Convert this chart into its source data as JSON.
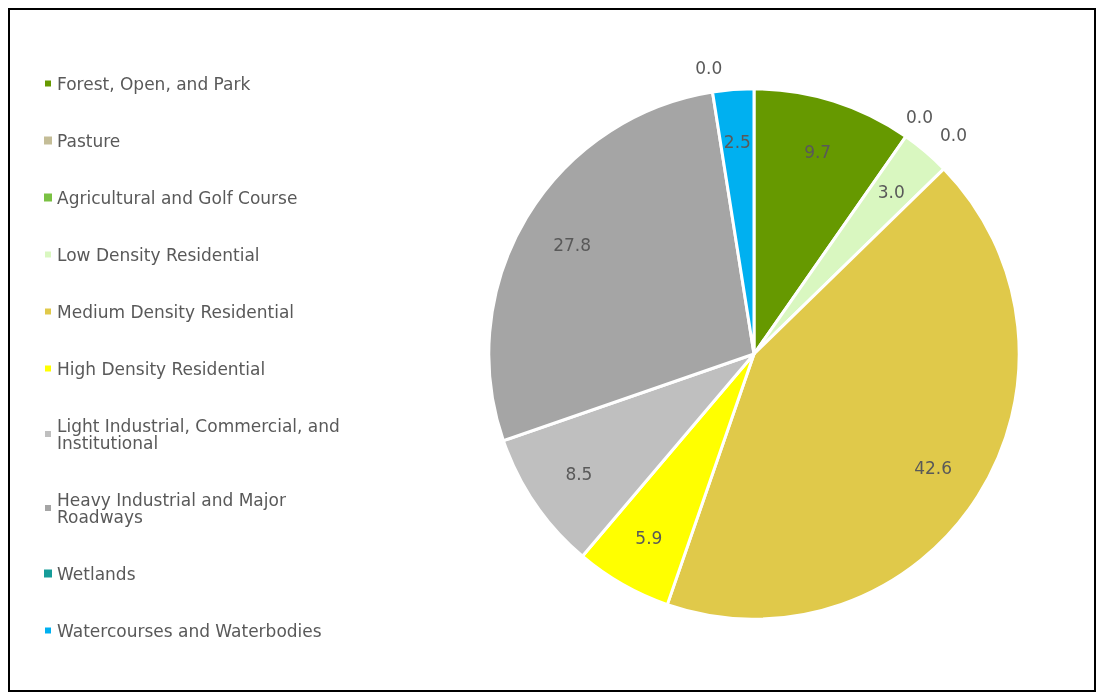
{
  "chart_data": {
    "type": "pie",
    "categories": [
      "Forest, Open, and Park",
      "Pasture",
      "Agricultural and Golf Course",
      "Low Density Residential",
      "Medium Density Residential",
      "High Density Residential",
      "Light Industrial, Commercial, and Institutional",
      "Heavy Industrial and Major Roadways",
      "Wetlands",
      "Watercourses and Waterbodies"
    ],
    "values": [
      9.7,
      0.0,
      0.0,
      3.0,
      42.6,
      5.9,
      8.5,
      27.8,
      0.0,
      2.5
    ],
    "colors": [
      "#669900",
      "#c4bd97",
      "#7ac143",
      "#d9f7c0",
      "#e0c94a",
      "#ffff00",
      "#bfbfbf",
      "#a5a5a5",
      "#169c99",
      "#00b0f0"
    ],
    "value_labels": [
      "9.7",
      "0.0",
      "0.0",
      "3.0",
      "42.6",
      "5.9",
      "8.5",
      "27.8",
      "0.0",
      "2.5"
    ],
    "legend": "left"
  }
}
